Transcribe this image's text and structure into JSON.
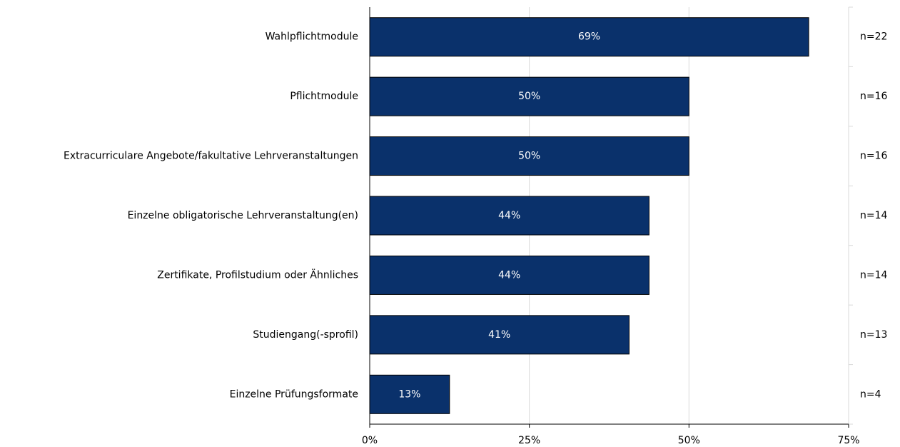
{
  "chart_data": {
    "type": "bar",
    "orientation": "horizontal",
    "categories": [
      "Wahlpflichtmodule",
      "Pflichtmodule",
      "Extracurriculare Angebote/fakultative Lehrveranstaltungen",
      "Einzelne obligatorische Lehrveranstaltung(en)",
      "Zertifikate, Profilstudium oder Ähnliches",
      "Studiengang(-sprofil)",
      "Einzelne Prüfungsformate"
    ],
    "values": [
      68.75,
      50,
      50,
      43.75,
      43.75,
      40.625,
      12.5
    ],
    "value_labels": [
      "69%",
      "50%",
      "50%",
      "44%",
      "44%",
      "41%",
      "13%"
    ],
    "n_labels": [
      "n=22",
      "n=16",
      "n=16",
      "n=14",
      "n=14",
      "n=13",
      "n=4"
    ],
    "color": "#0a316b",
    "xlim": [
      0,
      75
    ],
    "xticks": [
      {
        "value": 0,
        "label": "0%"
      },
      {
        "value": 25,
        "label": "25%"
      },
      {
        "value": 50,
        "label": "50%"
      },
      {
        "value": 75,
        "label": "75%"
      }
    ],
    "grid": true
  }
}
